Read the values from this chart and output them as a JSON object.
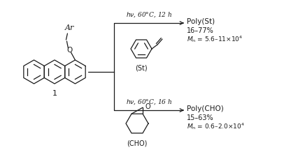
{
  "bg_color": "#ffffff",
  "line_color": "#1a1a1a",
  "figsize": [
    4.16,
    2.15
  ],
  "dpi": 100,
  "compound1_label": "1",
  "reaction1_condition": "$h\\nu$, 60°C, 12 h",
  "reaction2_condition": "$h\\nu$, 60°C, 16 h",
  "monomer1_label": "(St)",
  "monomer2_label": "(CHO)",
  "product1_label": "Poly(St)",
  "product1_yield": "16–77%",
  "product1_mn": "$M_{\\mathrm{n}}$ = 5.6–11×10$^{4}$",
  "product2_label": "Poly(CHO)",
  "product2_yield": "15–63%",
  "product2_mn": "$M_{\\mathrm{n}}$ = 0.6–2.0×10$^{4}$"
}
